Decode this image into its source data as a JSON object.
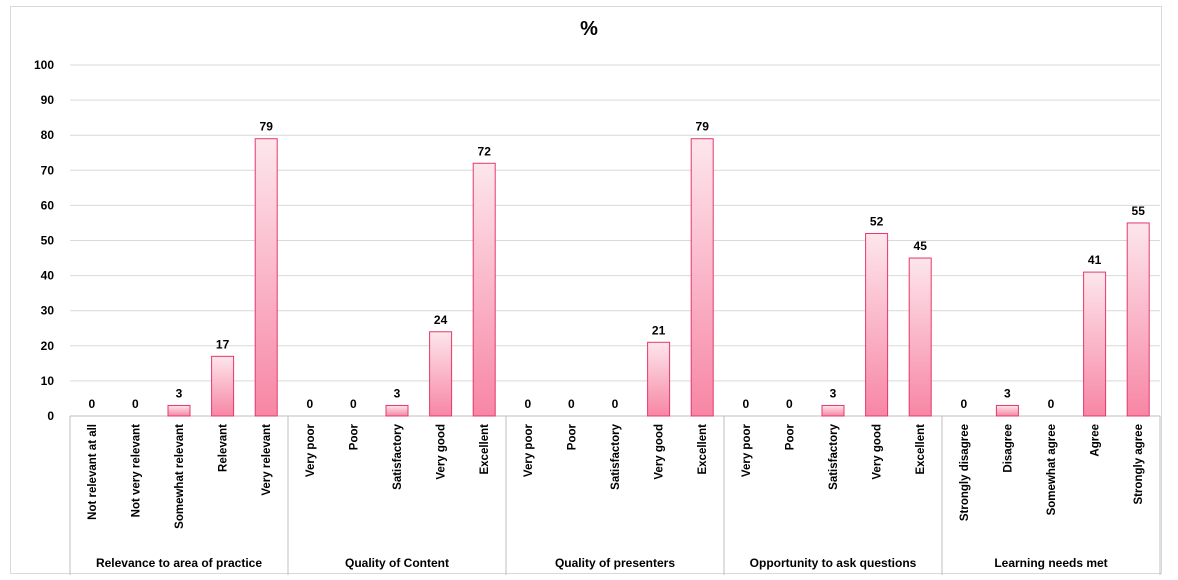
{
  "chart_data": {
    "type": "bar",
    "title": "%",
    "ylim": [
      0,
      100
    ],
    "yticks": [
      0,
      10,
      20,
      30,
      40,
      50,
      60,
      70,
      80,
      90,
      100
    ],
    "grid": true,
    "legend": "none",
    "colors": {
      "bar_top": "#fde6ec",
      "bar_bottom": "#f786a5",
      "bar_stroke": "#e4386b",
      "grid": "#d9d9d9"
    },
    "groups": [
      {
        "name": "Relevance to area of practice",
        "categories": [
          "Not relevant at all",
          "Not very relevant",
          "Somewhat relevant",
          "Relevant",
          "Very relevant"
        ],
        "values": [
          0,
          0,
          3,
          17,
          79
        ]
      },
      {
        "name": "Quality of Content",
        "categories": [
          "Very poor",
          "Poor",
          "Satisfactory",
          "Very good",
          "Excellent"
        ],
        "values": [
          0,
          0,
          3,
          24,
          72
        ]
      },
      {
        "name": "Quality of presenters",
        "categories": [
          "Very poor",
          "Poor",
          "Satisfactory",
          "Very good",
          "Excellent"
        ],
        "values": [
          0,
          0,
          0,
          21,
          79
        ]
      },
      {
        "name": "Opportunity to ask questions",
        "categories": [
          "Very poor",
          "Poor",
          "Satisfactory",
          "Very good",
          "Excellent"
        ],
        "values": [
          0,
          0,
          3,
          52,
          45
        ]
      },
      {
        "name": "Learning needs met",
        "categories": [
          "Strongly disagree",
          "Disagree",
          "Somewhat agree",
          "Agree",
          "Strongly agree"
        ],
        "values": [
          0,
          3,
          0,
          41,
          55
        ]
      }
    ]
  }
}
